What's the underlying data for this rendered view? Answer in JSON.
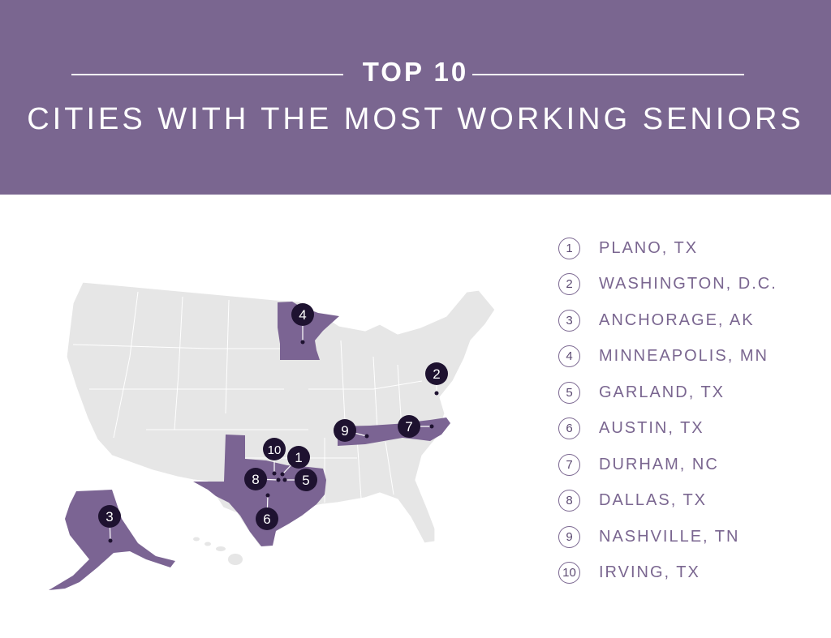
{
  "header": {
    "kicker": "TOP 10",
    "title": "CITIES WITH THE MOST WORKING SENIORS"
  },
  "colors": {
    "header_bg": "#7a6690",
    "highlight_state": "#7b6493",
    "base_state": "#e6e6e6",
    "marker": "#1e1230"
  },
  "map": {
    "highlighted_states": [
      "Alaska",
      "Texas",
      "Minnesota",
      "Tennessee",
      "North Carolina"
    ],
    "markers": [
      {
        "label": "1",
        "city": "Plano, TX"
      },
      {
        "label": "2",
        "city": "Washington, D.C."
      },
      {
        "label": "3",
        "city": "Anchorage, AK"
      },
      {
        "label": "4",
        "city": "Minneapolis, MN"
      },
      {
        "label": "5",
        "city": "Garland, TX"
      },
      {
        "label": "6",
        "city": "Austin, TX"
      },
      {
        "label": "7",
        "city": "Durham, NC"
      },
      {
        "label": "8",
        "city": "Dallas, TX"
      },
      {
        "label": "9",
        "city": "Nashville, TN"
      },
      {
        "label": "10",
        "city": "Irving, TX"
      }
    ]
  },
  "ranking": [
    {
      "rank": "1",
      "name": "PLANO, TX"
    },
    {
      "rank": "2",
      "name": "WASHINGTON, D.C."
    },
    {
      "rank": "3",
      "name": "ANCHORAGE, AK"
    },
    {
      "rank": "4",
      "name": "MINNEAPOLIS, MN"
    },
    {
      "rank": "5",
      "name": "GARLAND, TX"
    },
    {
      "rank": "6",
      "name": "AUSTIN, TX"
    },
    {
      "rank": "7",
      "name": "DURHAM, NC"
    },
    {
      "rank": "8",
      "name": "DALLAS, TX"
    },
    {
      "rank": "9",
      "name": "NASHVILLE, TN"
    },
    {
      "rank": "10",
      "name": "IRVING, TX"
    }
  ]
}
